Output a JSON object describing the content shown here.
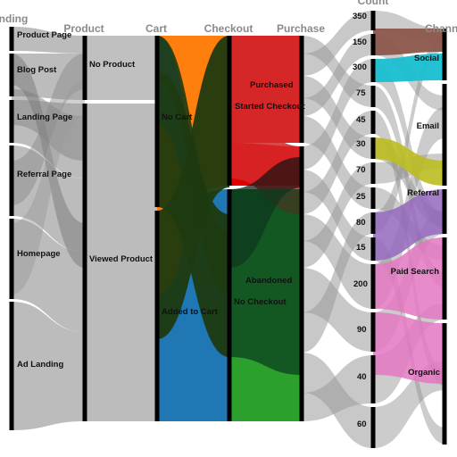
{
  "chart_data": {
    "type": "parallel-categories",
    "dimensions": [
      {
        "key": "landing",
        "title": "Landing",
        "categories": [
          "Product Page",
          "Blog Post",
          "Landing Page",
          "Referral Page",
          "Homepage",
          "Ad Landing"
        ]
      },
      {
        "key": "product",
        "title": "Product",
        "categories": [
          "No Product",
          "Viewed Product"
        ]
      },
      {
        "key": "cart",
        "title": "Cart",
        "categories": [
          "No Cart",
          "Added to Cart"
        ]
      },
      {
        "key": "checkout",
        "title": "Checkout",
        "categories": [
          "Started Checkout",
          "No Checkout"
        ]
      },
      {
        "key": "purchase",
        "title": "Purchase",
        "categories": [
          "Purchased",
          "Abandoned"
        ]
      },
      {
        "key": "count",
        "title": "Count",
        "categories": [
          "350",
          "150",
          "300",
          "75",
          "45",
          "30",
          "70",
          "25",
          "80",
          "15",
          "200",
          "90",
          "40",
          "60"
        ]
      },
      {
        "key": "channel",
        "title": "Channel",
        "categories": [
          "Social",
          "Email",
          "Referral",
          "Paid Search",
          "Organic"
        ]
      }
    ],
    "color_by": "cart",
    "colors": {
      "orange": "#ff7f0e",
      "blue": "#1f77b4",
      "red": "#d62728",
      "green": "#2ca02c",
      "dark": "#1e3a10",
      "gray": "#b0b0b0",
      "brown": "#8c564b",
      "cyan": "#17becf",
      "olive": "#bcbd22",
      "purple": "#9467bd",
      "pink": "#e377c2"
    }
  }
}
